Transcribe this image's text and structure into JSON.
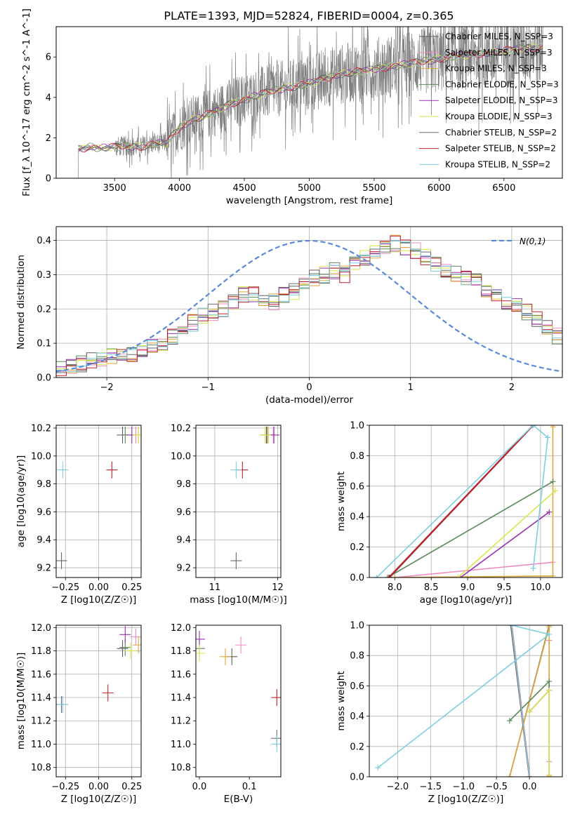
{
  "figure_title": "PLATE=1393, MJD=52824, FIBERID=0004, z=0.365",
  "colors": {
    "Chabrier MILES": "#5f5f5f",
    "Salpeter MILES": "#f08bc0",
    "Kroupa MILES": "#e0a73a",
    "Chabrier ELODIE": "#5a8a5a",
    "Salpeter ELODIE": "#9b30b0",
    "Kroupa ELODIE": "#d8e64a",
    "Chabrier STELIB": "#6a6a6a",
    "Salpeter STELIB": "#c0202a",
    "Kroupa STELIB": "#7ecfe0",
    "data_spectrum": "#808080",
    "normal_curve": "#5b8bd8"
  },
  "chart_data": [
    {
      "id": "spectrum",
      "type": "line",
      "xlabel": "wavelength [Angstrom, rest frame]",
      "ylabel": "Flux [f_λ 10^-17 erg cm^-2 s^-1 A^-1]",
      "xlim": [
        3050,
        6950
      ],
      "ylim": [
        0,
        7.5
      ],
      "xticks": [
        3500,
        4000,
        4500,
        5000,
        5500,
        6000,
        6500
      ],
      "yticks": [
        0,
        2,
        4,
        6
      ],
      "grid": false,
      "legend_position": "upper-right",
      "legend": [
        "Chabrier MILES, N_SSP=3",
        "Salpeter MILES, N_SSP=3",
        "Kroupa MILES, N_SSP=3",
        "Chabrier ELODIE, N_SSP=3",
        "Salpeter ELODIE, N_SSP=3",
        "Kroupa ELODIE, N_SSP=3",
        "Chabrier STELIB, N_SSP=2",
        "Salpeter STELIB, N_SSP=2",
        "Kroupa STELIB, N_SSP=2"
      ],
      "data_range": [
        3200,
        6800
      ],
      "model_shape": {
        "wavelength": [
          3200,
          3300,
          3400,
          3500,
          3600,
          3700,
          3800,
          3900,
          4000,
          4100,
          4200,
          4300,
          4400,
          4500,
          4600,
          4700,
          4800,
          4900,
          5000,
          5100,
          5200,
          5300,
          5400,
          5500,
          5600,
          5700,
          5800,
          5900,
          6000,
          6100,
          6200,
          6300,
          6400,
          6500,
          6600,
          6700,
          6800
        ],
        "flux": [
          1.4,
          1.55,
          1.5,
          1.55,
          1.6,
          1.55,
          1.7,
          1.75,
          2.5,
          2.9,
          3.1,
          3.4,
          3.7,
          3.9,
          4.1,
          4.3,
          4.45,
          4.55,
          4.7,
          4.9,
          5.1,
          5.2,
          5.3,
          5.4,
          5.5,
          5.6,
          5.7,
          5.8,
          5.9,
          6.0,
          6.1,
          6.15,
          6.2,
          6.3,
          6.4,
          6.45,
          6.5
        ]
      }
    },
    {
      "id": "residuals",
      "type": "histogram",
      "xlabel": "(data-model)/error",
      "ylabel": "Normed distribution",
      "xlim": [
        -2.5,
        2.5
      ],
      "ylim": [
        0,
        0.44
      ],
      "xticks": [
        -2,
        -1,
        0,
        1,
        2
      ],
      "yticks": [
        0.0,
        0.1,
        0.2,
        0.3,
        0.4
      ],
      "grid": true,
      "legend_position": "upper-right",
      "legend": [
        "N(0,1)"
      ],
      "bin_width": 0.1,
      "base_profile": [
        0.03,
        0.03,
        0.04,
        0.05,
        0.05,
        0.06,
        0.06,
        0.07,
        0.08,
        0.09,
        0.1,
        0.12,
        0.14,
        0.16,
        0.18,
        0.19,
        0.2,
        0.22,
        0.24,
        0.24,
        0.23,
        0.22,
        0.24,
        0.25,
        0.27,
        0.29,
        0.3,
        0.31,
        0.3,
        0.33,
        0.35,
        0.37,
        0.38,
        0.39,
        0.38,
        0.37,
        0.35,
        0.33,
        0.31,
        0.3,
        0.29,
        0.28,
        0.26,
        0.24,
        0.22,
        0.21,
        0.19,
        0.17,
        0.15,
        0.12,
        0.1,
        0.09,
        0.08,
        0.07,
        0.06,
        0.05,
        0.05,
        0.04,
        0.04,
        0.03
      ]
    },
    {
      "id": "age_vs_Z",
      "type": "scatter",
      "xlabel": "Z [log10(Z/Z☉)]",
      "ylabel": "age [log10(age/yr)]",
      "xlim": [
        -0.32,
        0.32
      ],
      "ylim": [
        9.13,
        10.22
      ],
      "xticks": [
        -0.25,
        0.0,
        0.25
      ],
      "yticks": [
        9.2,
        9.4,
        9.6,
        9.8,
        10.0,
        10.2
      ],
      "grid": true,
      "points": [
        {
          "model": "Chabrier MILES",
          "x": 0.18,
          "y": 10.15
        },
        {
          "model": "Salpeter MILES",
          "x": 0.28,
          "y": 10.15
        },
        {
          "model": "Kroupa MILES",
          "x": 0.3,
          "y": 10.15
        },
        {
          "model": "Chabrier ELODIE",
          "x": 0.2,
          "y": 10.15
        },
        {
          "model": "Salpeter ELODIE",
          "x": 0.25,
          "y": 10.15
        },
        {
          "model": "Kroupa ELODIE",
          "x": 0.3,
          "y": 10.15
        },
        {
          "model": "Chabrier STELIB",
          "x": -0.28,
          "y": 9.25
        },
        {
          "model": "Salpeter STELIB",
          "x": 0.1,
          "y": 9.9
        },
        {
          "model": "Kroupa STELIB",
          "x": -0.27,
          "y": 9.9
        }
      ]
    },
    {
      "id": "age_vs_mass",
      "type": "scatter",
      "xlabel": "mass [log10(M/M☉)]",
      "ylabel": "",
      "xlim": [
        10.7,
        12.05
      ],
      "ylim": [
        9.13,
        10.22
      ],
      "xticks": [
        11,
        12
      ],
      "yticks": [
        9.2,
        9.4,
        9.6,
        9.8,
        10.0,
        10.2
      ],
      "grid": true,
      "points": [
        {
          "model": "Chabrier MILES",
          "x": 11.82,
          "y": 10.15
        },
        {
          "model": "Salpeter MILES",
          "x": 11.93,
          "y": 10.15
        },
        {
          "model": "Kroupa MILES",
          "x": 11.85,
          "y": 10.15
        },
        {
          "model": "Chabrier ELODIE",
          "x": 11.83,
          "y": 10.15
        },
        {
          "model": "Salpeter ELODIE",
          "x": 11.94,
          "y": 10.15
        },
        {
          "model": "Kroupa ELODIE",
          "x": 11.8,
          "y": 10.15
        },
        {
          "model": "Chabrier STELIB",
          "x": 11.34,
          "y": 9.25
        },
        {
          "model": "Salpeter STELIB",
          "x": 11.44,
          "y": 9.9
        },
        {
          "model": "Kroupa STELIB",
          "x": 11.34,
          "y": 9.9
        }
      ]
    },
    {
      "id": "weight_vs_age",
      "type": "line",
      "xlabel": "age [log10(age/yr)]",
      "ylabel": "mass weight",
      "xlim": [
        7.65,
        10.3
      ],
      "ylim": [
        0,
        1.0
      ],
      "xticks": [
        8.0,
        8.5,
        9.0,
        9.5,
        10.0
      ],
      "yticks": [
        0.0,
        0.2,
        0.4,
        0.6,
        0.8,
        1.0
      ],
      "grid": true,
      "series": [
        {
          "model": "Chabrier MILES",
          "x": [
            7.93,
            9.9
          ],
          "y": [
            0.0,
            1.0
          ]
        },
        {
          "model": "Salpeter MILES",
          "x": [
            8.0,
            10.17
          ],
          "y": [
            0.0,
            0.1
          ]
        },
        {
          "model": "Kroupa MILES",
          "x": [
            8.0,
            10.17,
            10.17
          ],
          "y": [
            0.0,
            0.01,
            0.99
          ]
        },
        {
          "model": "Chabrier ELODIE",
          "x": [
            7.9,
            10.17
          ],
          "y": [
            0.0,
            0.63
          ]
        },
        {
          "model": "Salpeter ELODIE",
          "x": [
            8.9,
            10.12
          ],
          "y": [
            0.0,
            0.43
          ]
        },
        {
          "model": "Kroupa ELODIE",
          "x": [
            8.87,
            10.2
          ],
          "y": [
            0.0,
            0.57
          ]
        },
        {
          "model": "Chabrier STELIB",
          "x": [
            7.92,
            9.9
          ],
          "y": [
            0.0,
            1.0
          ]
        },
        {
          "model": "Salpeter STELIB",
          "x": [
            7.92,
            9.9
          ],
          "y": [
            0.0,
            1.0
          ]
        },
        {
          "model": "Kroupa STELIB",
          "x": [
            7.75,
            9.9,
            10.1,
            9.9
          ],
          "y": [
            0.0,
            1.0,
            0.92,
            0.06
          ]
        }
      ]
    },
    {
      "id": "mass_vs_Z",
      "type": "scatter",
      "xlabel": "Z [log10(Z/Z☉)]",
      "ylabel": "mass [log10(M/M☉)]",
      "xlim": [
        -0.32,
        0.32
      ],
      "ylim": [
        10.72,
        12.02
      ],
      "xticks": [
        -0.25,
        0.0,
        0.25
      ],
      "yticks": [
        10.8,
        11.0,
        11.2,
        11.4,
        11.6,
        11.8,
        12.0
      ],
      "grid": true,
      "points": [
        {
          "model": "Chabrier MILES",
          "x": 0.18,
          "y": 11.82
        },
        {
          "model": "Salpeter MILES",
          "x": 0.28,
          "y": 11.92
        },
        {
          "model": "Kroupa MILES",
          "x": 0.3,
          "y": 11.85
        },
        {
          "model": "Chabrier ELODIE",
          "x": 0.2,
          "y": 11.83
        },
        {
          "model": "Salpeter ELODIE",
          "x": 0.2,
          "y": 11.94
        },
        {
          "model": "Kroupa ELODIE",
          "x": 0.24,
          "y": 11.8
        },
        {
          "model": "Chabrier STELIB",
          "x": -0.28,
          "y": 11.34
        },
        {
          "model": "Salpeter STELIB",
          "x": 0.07,
          "y": 11.44
        },
        {
          "model": "Kroupa STELIB",
          "x": -0.27,
          "y": 11.34
        }
      ]
    },
    {
      "id": "mass_vs_ebv",
      "type": "scatter",
      "xlabel": "E(B-V)",
      "ylabel": "",
      "xlim": [
        -0.007,
        0.163
      ],
      "ylim": [
        10.72,
        12.02
      ],
      "xticks": [
        0.0,
        0.1
      ],
      "yticks": [
        10.8,
        11.0,
        11.2,
        11.4,
        11.6,
        11.8,
        12.0
      ],
      "grid": false,
      "points": [
        {
          "model": "Chabrier MILES",
          "x": 0.065,
          "y": 11.75
        },
        {
          "model": "Salpeter MILES",
          "x": 0.083,
          "y": 11.85
        },
        {
          "model": "Kroupa MILES",
          "x": 0.052,
          "y": 11.75
        },
        {
          "model": "Chabrier ELODIE",
          "x": 0.0,
          "y": 11.82
        },
        {
          "model": "Salpeter ELODIE",
          "x": 0.0,
          "y": 11.9
        },
        {
          "model": "Kroupa ELODIE",
          "x": 0.0,
          "y": 11.78
        },
        {
          "model": "Chabrier STELIB",
          "x": 0.155,
          "y": 11.05
        },
        {
          "model": "Salpeter STELIB",
          "x": 0.155,
          "y": 11.4
        },
        {
          "model": "Kroupa STELIB",
          "x": 0.155,
          "y": 11.0
        }
      ]
    },
    {
      "id": "weight_vs_Z",
      "type": "line",
      "xlabel": "Z [log10(Z/Z☉)]",
      "ylabel": "mass weight",
      "xlim": [
        -2.43,
        0.5
      ],
      "ylim": [
        0,
        1.0
      ],
      "xticks": [
        -2.0,
        -1.5,
        -1.0,
        -0.5,
        0.0
      ],
      "yticks": [
        0.0,
        0.2,
        0.4,
        0.6,
        0.8,
        1.0
      ],
      "grid": true,
      "series": [
        {
          "model": "Chabrier MILES",
          "x": [
            -0.3,
            0.3
          ],
          "y": [
            0.0,
            1.0
          ]
        },
        {
          "model": "Salpeter MILES",
          "x": [
            0.3,
            0.3
          ],
          "y": [
            0.1,
            0.9
          ]
        },
        {
          "model": "Kroupa MILES",
          "x": [
            -0.3,
            0.3,
            0.3
          ],
          "y": [
            0.0,
            0.99,
            0.01
          ]
        },
        {
          "model": "Chabrier ELODIE",
          "x": [
            -0.3,
            0.3,
            0.3
          ],
          "y": [
            0.37,
            0.63,
            0.0
          ]
        },
        {
          "model": "Salpeter ELODIE",
          "x": [
            0.0,
            0.3
          ],
          "y": [
            0.43,
            0.57
          ]
        },
        {
          "model": "Kroupa ELODIE",
          "x": [
            0.0,
            0.3,
            0.3
          ],
          "y": [
            0.43,
            0.57,
            0.0
          ]
        },
        {
          "model": "Chabrier STELIB",
          "x": [
            -0.28,
            0.0
          ],
          "y": [
            1.0,
            0.0
          ]
        },
        {
          "model": "Salpeter STELIB",
          "x": [
            -0.27,
            0.0
          ],
          "y": [
            1.0,
            0.0
          ]
        },
        {
          "model": "Kroupa STELIB",
          "x": [
            -2.3,
            0.3,
            -0.27,
            0.0
          ],
          "y": [
            0.06,
            0.94,
            1.0,
            0.0
          ]
        }
      ]
    }
  ]
}
